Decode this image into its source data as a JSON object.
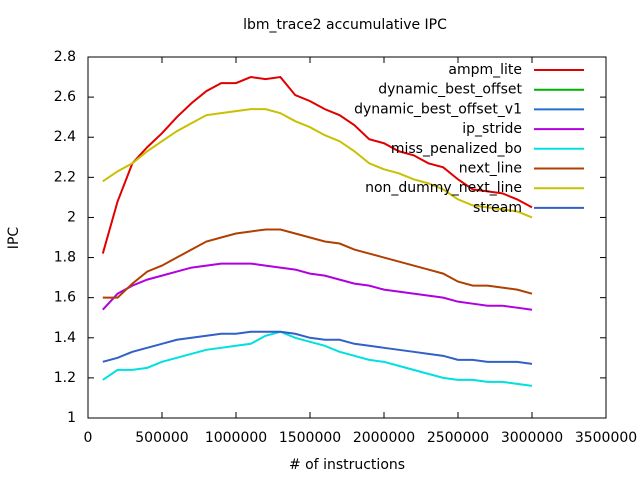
{
  "chart_data": {
    "type": "line",
    "title": "lbm_trace2 accumulative IPC",
    "x_label": "# of instructions",
    "y_label": "IPC",
    "x": [
      100000,
      200000,
      300000,
      400000,
      500000,
      600000,
      700000,
      800000,
      900000,
      1000000,
      1100000,
      1200000,
      1300000,
      1400000,
      1500000,
      1600000,
      1700000,
      1800000,
      1900000,
      2000000,
      2100000,
      2200000,
      2300000,
      2400000,
      2500000,
      2600000,
      2700000,
      2800000,
      2900000,
      3000000
    ],
    "xlim": [
      0,
      3500000
    ],
    "xticks": [
      0,
      500000,
      1000000,
      1500000,
      2000000,
      2500000,
      3000000,
      3500000
    ],
    "ylim": [
      1,
      2.8
    ],
    "yticks": [
      1,
      1.2,
      1.4,
      1.6,
      1.8,
      2,
      2.2,
      2.4,
      2.6,
      2.8
    ],
    "legend": "upper right",
    "series": [
      {
        "name": "ampm_lite",
        "color": "#e00000",
        "values": [
          1.82,
          2.08,
          2.27,
          2.35,
          2.42,
          2.5,
          2.57,
          2.63,
          2.67,
          2.67,
          2.7,
          2.69,
          2.7,
          2.61,
          2.58,
          2.54,
          2.51,
          2.46,
          2.39,
          2.37,
          2.33,
          2.31,
          2.27,
          2.25,
          2.19,
          2.14,
          2.13,
          2.12,
          2.09,
          2.05
        ]
      },
      {
        "name": "dynamic_best_offset",
        "color": "#00b000",
        "values": [
          null,
          null,
          null,
          null,
          null,
          null,
          null,
          null,
          null,
          null,
          null,
          null,
          null,
          null,
          null,
          null,
          null,
          null,
          null,
          null,
          null,
          null,
          null,
          null,
          null,
          null,
          null,
          null,
          null,
          null
        ]
      },
      {
        "name": "dynamic_best_offset_v1",
        "color": "#2070d0",
        "values": [
          null,
          null,
          null,
          null,
          null,
          null,
          null,
          null,
          null,
          null,
          null,
          null,
          null,
          null,
          null,
          null,
          null,
          null,
          null,
          null,
          null,
          null,
          null,
          null,
          null,
          null,
          null,
          null,
          null,
          null
        ]
      },
      {
        "name": "ip_stride",
        "color": "#b000e0",
        "values": [
          1.54,
          1.62,
          1.66,
          1.69,
          1.71,
          1.73,
          1.75,
          1.76,
          1.77,
          1.77,
          1.77,
          1.76,
          1.75,
          1.74,
          1.72,
          1.71,
          1.69,
          1.67,
          1.66,
          1.64,
          1.63,
          1.62,
          1.61,
          1.6,
          1.58,
          1.57,
          1.56,
          1.56,
          1.55,
          1.54
        ]
      },
      {
        "name": "miss_penalized_bo",
        "color": "#00e0e0",
        "values": [
          1.19,
          1.24,
          1.24,
          1.25,
          1.28,
          1.3,
          1.32,
          1.34,
          1.35,
          1.36,
          1.37,
          1.41,
          1.43,
          1.4,
          1.38,
          1.36,
          1.33,
          1.31,
          1.29,
          1.28,
          1.26,
          1.24,
          1.22,
          1.2,
          1.19,
          1.19,
          1.18,
          1.18,
          1.17,
          1.16
        ]
      },
      {
        "name": "next_line",
        "color": "#b04000",
        "values": [
          1.6,
          1.6,
          1.67,
          1.73,
          1.76,
          1.8,
          1.84,
          1.88,
          1.9,
          1.92,
          1.93,
          1.94,
          1.94,
          1.92,
          1.9,
          1.88,
          1.87,
          1.84,
          1.82,
          1.8,
          1.78,
          1.76,
          1.74,
          1.72,
          1.68,
          1.66,
          1.66,
          1.65,
          1.64,
          1.62
        ]
      },
      {
        "name": "non_dummy_next_line",
        "color": "#c8c000",
        "values": [
          2.18,
          2.23,
          2.27,
          2.33,
          2.38,
          2.43,
          2.47,
          2.51,
          2.52,
          2.53,
          2.54,
          2.54,
          2.52,
          2.48,
          2.45,
          2.41,
          2.38,
          2.33,
          2.27,
          2.24,
          2.22,
          2.19,
          2.17,
          2.14,
          2.09,
          2.06,
          2.05,
          2.04,
          2.03,
          2.0
        ]
      },
      {
        "name": "stream",
        "color": "#3060c8",
        "values": [
          1.28,
          1.3,
          1.33,
          1.35,
          1.37,
          1.39,
          1.4,
          1.41,
          1.42,
          1.42,
          1.43,
          1.43,
          1.43,
          1.42,
          1.4,
          1.39,
          1.39,
          1.37,
          1.36,
          1.35,
          1.34,
          1.33,
          1.32,
          1.31,
          1.29,
          1.29,
          1.28,
          1.28,
          1.28,
          1.27
        ]
      }
    ]
  }
}
